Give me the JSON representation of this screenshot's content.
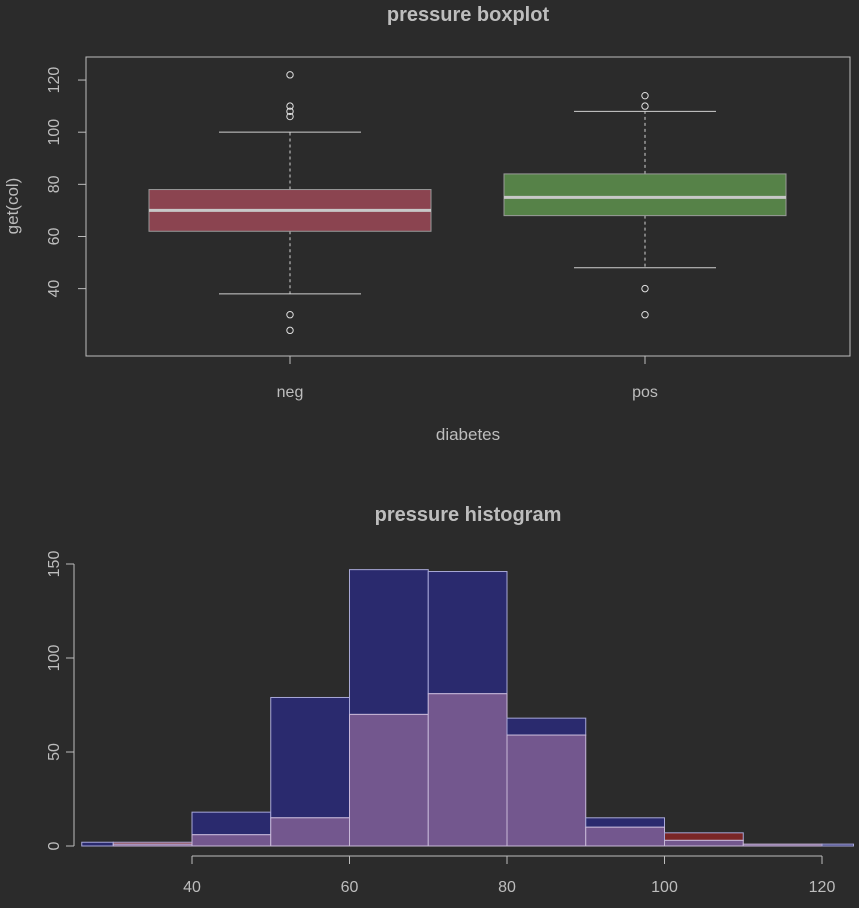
{
  "chart_data": [
    {
      "type": "boxplot",
      "title": "pressure boxplot",
      "xlabel": "diabetes",
      "ylabel": "get(col)",
      "ylim": [
        18,
        125
      ],
      "yticks": [
        40,
        60,
        80,
        100,
        120
      ],
      "categories": [
        "neg",
        "pos"
      ],
      "boxes": [
        {
          "name": "neg",
          "whisker_low": 38,
          "q1": 62,
          "median": 70,
          "q3": 78,
          "whisker_high": 100,
          "outliers": [
            24,
            30,
            106,
            108,
            110,
            122
          ],
          "color": "#8b4450"
        },
        {
          "name": "pos",
          "whisker_low": 48,
          "q1": 68,
          "median": 75,
          "q3": 84,
          "whisker_high": 108,
          "outliers": [
            30,
            40,
            110,
            114
          ],
          "color": "#568248"
        }
      ],
      "grid": false
    },
    {
      "type": "histogram",
      "title": "pressure histogram",
      "xlabel": "",
      "ylabel": "",
      "xlim": [
        26,
        124
      ],
      "ylim": [
        0,
        150
      ],
      "xticks": [
        40,
        60,
        80,
        100,
        120
      ],
      "yticks": [
        0,
        50,
        100,
        150
      ],
      "bins": [
        [
          20,
          30
        ],
        [
          30,
          40
        ],
        [
          40,
          50
        ],
        [
          50,
          60
        ],
        [
          60,
          70
        ],
        [
          70,
          80
        ],
        [
          80,
          90
        ],
        [
          90,
          100
        ],
        [
          100,
          110
        ],
        [
          110,
          120
        ],
        [
          120,
          130
        ]
      ],
      "series": [
        {
          "values": [
            2,
            1,
            18,
            79,
            147,
            146,
            68,
            15,
            3,
            1,
            1
          ],
          "color": "#2a2a6e"
        },
        {
          "values": [
            0,
            2,
            6,
            15,
            70,
            81,
            59,
            10,
            7,
            1,
            0
          ],
          "color": "#7a2626"
        }
      ],
      "overlap_color": "#73578e",
      "grid": false
    }
  ]
}
